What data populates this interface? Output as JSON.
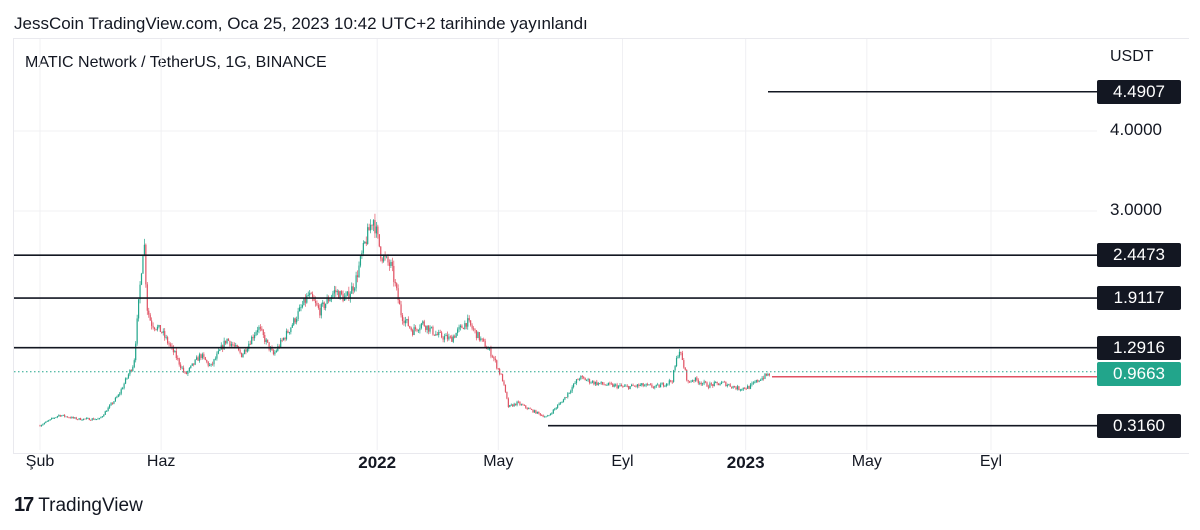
{
  "header": {
    "published": "JessCoin TradingView.com, Oca 25, 2023 10:42 UTC+2 tarihinde yayınlandı"
  },
  "chart_data": {
    "type": "line",
    "title": "MATIC Network / TetherUS, 1G, BINANCE",
    "ylabel": "USDT",
    "ylim": [
      0.3,
      4.8
    ],
    "x_ticks": [
      {
        "label": "Şub",
        "date": "2021-02-01",
        "bold": false
      },
      {
        "label": "Haz",
        "date": "2021-06-01",
        "bold": false
      },
      {
        "label": "2022",
        "date": "2022-01-01",
        "bold": true
      },
      {
        "label": "May",
        "date": "2022-05-01",
        "bold": false
      },
      {
        "label": "Eyl",
        "date": "2022-09-01",
        "bold": false
      },
      {
        "label": "2023",
        "date": "2023-01-01",
        "bold": true
      },
      {
        "label": "May",
        "date": "2023-05-01",
        "bold": false
      },
      {
        "label": "Eyl",
        "date": "2023-09-01",
        "bold": false
      }
    ],
    "y_ticks": [
      {
        "label": "4.0000",
        "value": 4.0
      },
      {
        "label": "3.0000",
        "value": 3.0
      }
    ],
    "series": [
      {
        "x": [
          "2021-02-01",
          "2021-02-20",
          "2021-03-10",
          "2021-04-01",
          "2021-04-20",
          "2021-05-05",
          "2021-05-15",
          "2021-05-18",
          "2021-05-22",
          "2021-06-01",
          "2021-06-15",
          "2021-06-25",
          "2021-07-10",
          "2021-07-20",
          "2021-08-05",
          "2021-08-20",
          "2021-09-05",
          "2021-09-20",
          "2021-10-05",
          "2021-10-25",
          "2021-11-05",
          "2021-11-20",
          "2021-12-01",
          "2021-12-10",
          "2021-12-20",
          "2021-12-28",
          "2022-01-05",
          "2022-01-15",
          "2022-01-25",
          "2022-02-05",
          "2022-02-15",
          "2022-03-01",
          "2022-03-15",
          "2022-03-31",
          "2022-04-10",
          "2022-04-25",
          "2022-05-05",
          "2022-05-11",
          "2022-05-20",
          "2022-06-01",
          "2022-06-18",
          "2022-07-05",
          "2022-07-20",
          "2022-08-05",
          "2022-08-20",
          "2022-09-05",
          "2022-09-20",
          "2022-10-05",
          "2022-10-20",
          "2022-10-27",
          "2022-11-05",
          "2022-11-10",
          "2022-11-25",
          "2022-12-10",
          "2022-12-25",
          "2023-01-05",
          "2023-01-15",
          "2023-01-25"
        ],
        "y": [
          0.32,
          0.45,
          0.4,
          0.4,
          0.7,
          1.1,
          2.68,
          1.8,
          1.6,
          1.5,
          1.2,
          0.95,
          1.2,
          1.05,
          1.4,
          1.2,
          1.55,
          1.2,
          1.5,
          1.95,
          1.75,
          2.0,
          1.9,
          2.1,
          2.6,
          2.92,
          2.45,
          2.3,
          1.7,
          1.5,
          1.6,
          1.45,
          1.4,
          1.62,
          1.45,
          1.2,
          0.9,
          0.55,
          0.6,
          0.52,
          0.42,
          0.65,
          0.92,
          0.85,
          0.82,
          0.8,
          0.82,
          0.8,
          0.88,
          1.28,
          0.85,
          0.9,
          0.82,
          0.85,
          0.78,
          0.8,
          0.9,
          0.9663
        ]
      }
    ],
    "levels": [
      {
        "label": "4.4907",
        "value": 4.4907
      },
      {
        "label": "2.4473",
        "value": 2.4473
      },
      {
        "label": "1.9117",
        "value": 1.9117
      },
      {
        "label": "1.2916",
        "value": 1.2916
      },
      {
        "label": "0.3160",
        "value": 0.316
      }
    ],
    "current_price": {
      "label": "0.9663",
      "value": 0.9663
    },
    "colors": {
      "up": "#22a58b",
      "down": "#e05263",
      "level": "#131722",
      "price_line": "#e05263",
      "dotted": "#22a58b",
      "price_badge": "#22a58b"
    }
  },
  "footer": {
    "brand": "TradingView"
  }
}
